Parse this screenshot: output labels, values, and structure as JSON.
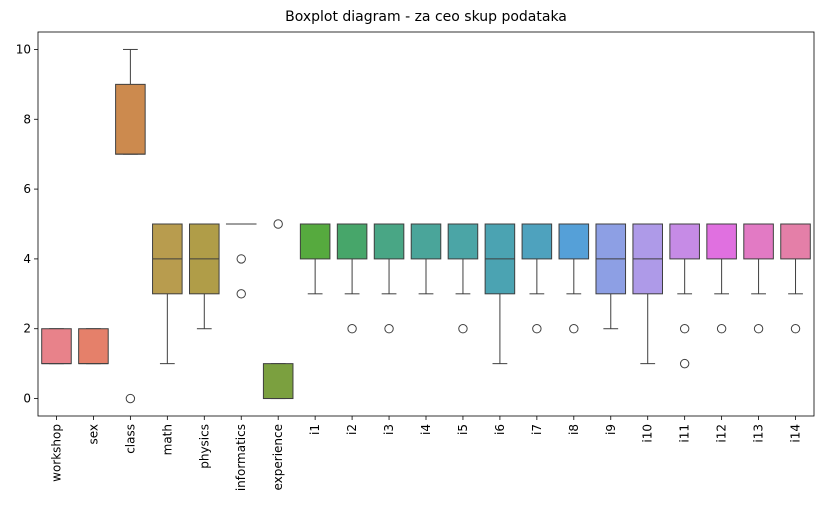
{
  "chart_data": {
    "type": "boxplot",
    "title": "Boxplot diagram - za ceo skup podataka",
    "xlabel": "",
    "ylabel": "",
    "ylim": [
      -0.5,
      10.5
    ],
    "yticks": [
      0,
      2,
      4,
      6,
      8,
      10
    ],
    "grid": false,
    "legend": "none",
    "series": [
      {
        "name": "workshop",
        "color": "#e8828a",
        "min": 1,
        "q1": 1,
        "median": 1,
        "q3": 2,
        "max": 2,
        "outliers": []
      },
      {
        "name": "sex",
        "color": "#e5806a",
        "min": 1,
        "q1": 1,
        "median": 1,
        "q3": 2,
        "max": 2,
        "outliers": []
      },
      {
        "name": "class",
        "color": "#cc8a4e",
        "min": 7,
        "q1": 7,
        "median": 7,
        "q3": 9,
        "max": 10,
        "outliers": [
          0
        ]
      },
      {
        "name": "math",
        "color": "#b89c4e",
        "min": 1,
        "q1": 3,
        "median": 4,
        "q3": 5,
        "max": 5,
        "outliers": []
      },
      {
        "name": "physics",
        "color": "#b09d48",
        "min": 2,
        "q1": 3,
        "median": 4,
        "q3": 5,
        "max": 5,
        "outliers": []
      },
      {
        "name": "informatics",
        "color": "#99a04a",
        "min": 5,
        "q1": 5,
        "median": 5,
        "q3": 5,
        "max": 5,
        "outliers": [
          4,
          3
        ]
      },
      {
        "name": "experience",
        "color": "#7ba03f",
        "min": 0,
        "q1": 0,
        "median": 0,
        "q3": 1,
        "max": 1,
        "outliers": [
          5
        ]
      },
      {
        "name": "i1",
        "color": "#56aa3e",
        "min": 3,
        "q1": 4,
        "median": 5,
        "q3": 5,
        "max": 5,
        "outliers": []
      },
      {
        "name": "i2",
        "color": "#47a66a",
        "min": 3,
        "q1": 4,
        "median": 5,
        "q3": 5,
        "max": 5,
        "outliers": [
          2
        ]
      },
      {
        "name": "i3",
        "color": "#49a685",
        "min": 3,
        "q1": 4,
        "median": 5,
        "q3": 5,
        "max": 5,
        "outliers": [
          2
        ]
      },
      {
        "name": "i4",
        "color": "#4aa59a",
        "min": 3,
        "q1": 4,
        "median": 5,
        "q3": 5,
        "max": 5,
        "outliers": []
      },
      {
        "name": "i5",
        "color": "#4ba5a6",
        "min": 3,
        "q1": 4,
        "median": 5,
        "q3": 5,
        "max": 5,
        "outliers": [
          2
        ]
      },
      {
        "name": "i6",
        "color": "#4ba3b2",
        "min": 1,
        "q1": 3,
        "median": 4,
        "q3": 5,
        "max": 5,
        "outliers": []
      },
      {
        "name": "i7",
        "color": "#4ea2be",
        "min": 3,
        "q1": 4,
        "median": 5,
        "q3": 5,
        "max": 5,
        "outliers": [
          2
        ]
      },
      {
        "name": "i8",
        "color": "#55a0d8",
        "min": 3,
        "q1": 4,
        "median": 5,
        "q3": 5,
        "max": 5,
        "outliers": [
          2
        ]
      },
      {
        "name": "i9",
        "color": "#8d9fe4",
        "min": 2,
        "q1": 3,
        "median": 4,
        "q3": 5,
        "max": 5,
        "outliers": []
      },
      {
        "name": "i10",
        "color": "#ae9ae8",
        "min": 1,
        "q1": 3,
        "median": 4,
        "q3": 5,
        "max": 5,
        "outliers": []
      },
      {
        "name": "i11",
        "color": "#c68be6",
        "min": 3,
        "q1": 4,
        "median": 5,
        "q3": 5,
        "max": 5,
        "outliers": [
          2,
          1
        ]
      },
      {
        "name": "i12",
        "color": "#e070e0",
        "min": 3,
        "q1": 4,
        "median": 5,
        "q3": 5,
        "max": 5,
        "outliers": [
          2
        ]
      },
      {
        "name": "i13",
        "color": "#e27ac4",
        "min": 3,
        "q1": 4,
        "median": 5,
        "q3": 5,
        "max": 5,
        "outliers": [
          2
        ]
      },
      {
        "name": "i14",
        "color": "#e47fa8",
        "min": 3,
        "q1": 4,
        "median": 5,
        "q3": 5,
        "max": 5,
        "outliers": [
          2
        ]
      }
    ]
  }
}
